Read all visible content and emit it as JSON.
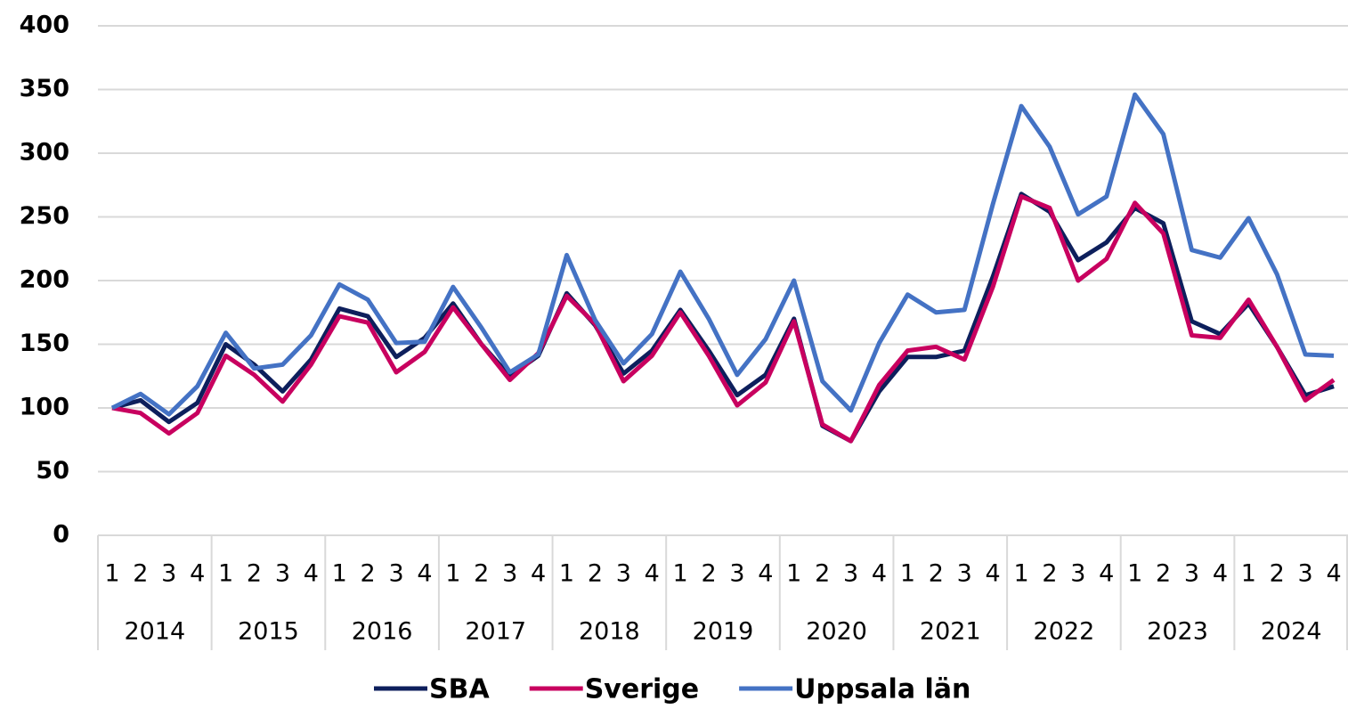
{
  "chart_data": {
    "type": "line",
    "categories": [
      "1",
      "2",
      "3",
      "4",
      "1",
      "2",
      "3",
      "4",
      "1",
      "2",
      "3",
      "4",
      "1",
      "2",
      "3",
      "4",
      "1",
      "2",
      "3",
      "4",
      "1",
      "2",
      "3",
      "4",
      "1",
      "2",
      "3",
      "4",
      "1",
      "2",
      "3",
      "4",
      "1",
      "2",
      "3",
      "4",
      "1",
      "2",
      "3",
      "4",
      "1",
      "2",
      "3",
      "4"
    ],
    "groups": [
      "2014",
      "2015",
      "2016",
      "2017",
      "2018",
      "2019",
      "2020",
      "2021",
      "2022",
      "2023",
      "2024"
    ],
    "ylim": [
      0,
      400
    ],
    "yticks": [
      0,
      50,
      100,
      150,
      200,
      250,
      300,
      350,
      400
    ],
    "grid": true,
    "legend": "bottom",
    "series": [
      {
        "name": "SBA",
        "color": "#0d1f5c",
        "values": [
          100,
          106,
          89,
          104,
          150,
          134,
          113,
          138,
          178,
          172,
          140,
          155,
          182,
          150,
          125,
          141,
          190,
          165,
          127,
          145,
          177,
          145,
          110,
          126,
          170,
          86,
          74,
          113,
          140,
          140,
          145,
          203,
          268,
          254,
          216,
          230,
          257,
          245,
          168,
          158,
          182,
          148,
          110,
          117
        ]
      },
      {
        "name": "Sverige",
        "color": "#c8005f",
        "values": [
          100,
          96,
          80,
          96,
          141,
          126,
          105,
          134,
          172,
          167,
          128,
          144,
          179,
          150,
          122,
          143,
          188,
          166,
          121,
          141,
          175,
          141,
          102,
          120,
          168,
          87,
          74,
          118,
          145,
          148,
          138,
          195,
          266,
          257,
          200,
          217,
          261,
          237,
          157,
          155,
          185,
          148,
          106,
          122
        ]
      },
      {
        "name": "Uppsala län",
        "color": "#4472c4",
        "values": [
          100,
          111,
          95,
          117,
          159,
          131,
          134,
          157,
          197,
          185,
          151,
          152,
          195,
          163,
          128,
          142,
          220,
          169,
          135,
          158,
          207,
          170,
          126,
          154,
          200,
          121,
          98,
          151,
          189,
          175,
          177,
          260,
          337,
          305,
          252,
          266,
          346,
          315,
          224,
          218,
          249,
          205,
          142,
          141
        ]
      }
    ]
  }
}
